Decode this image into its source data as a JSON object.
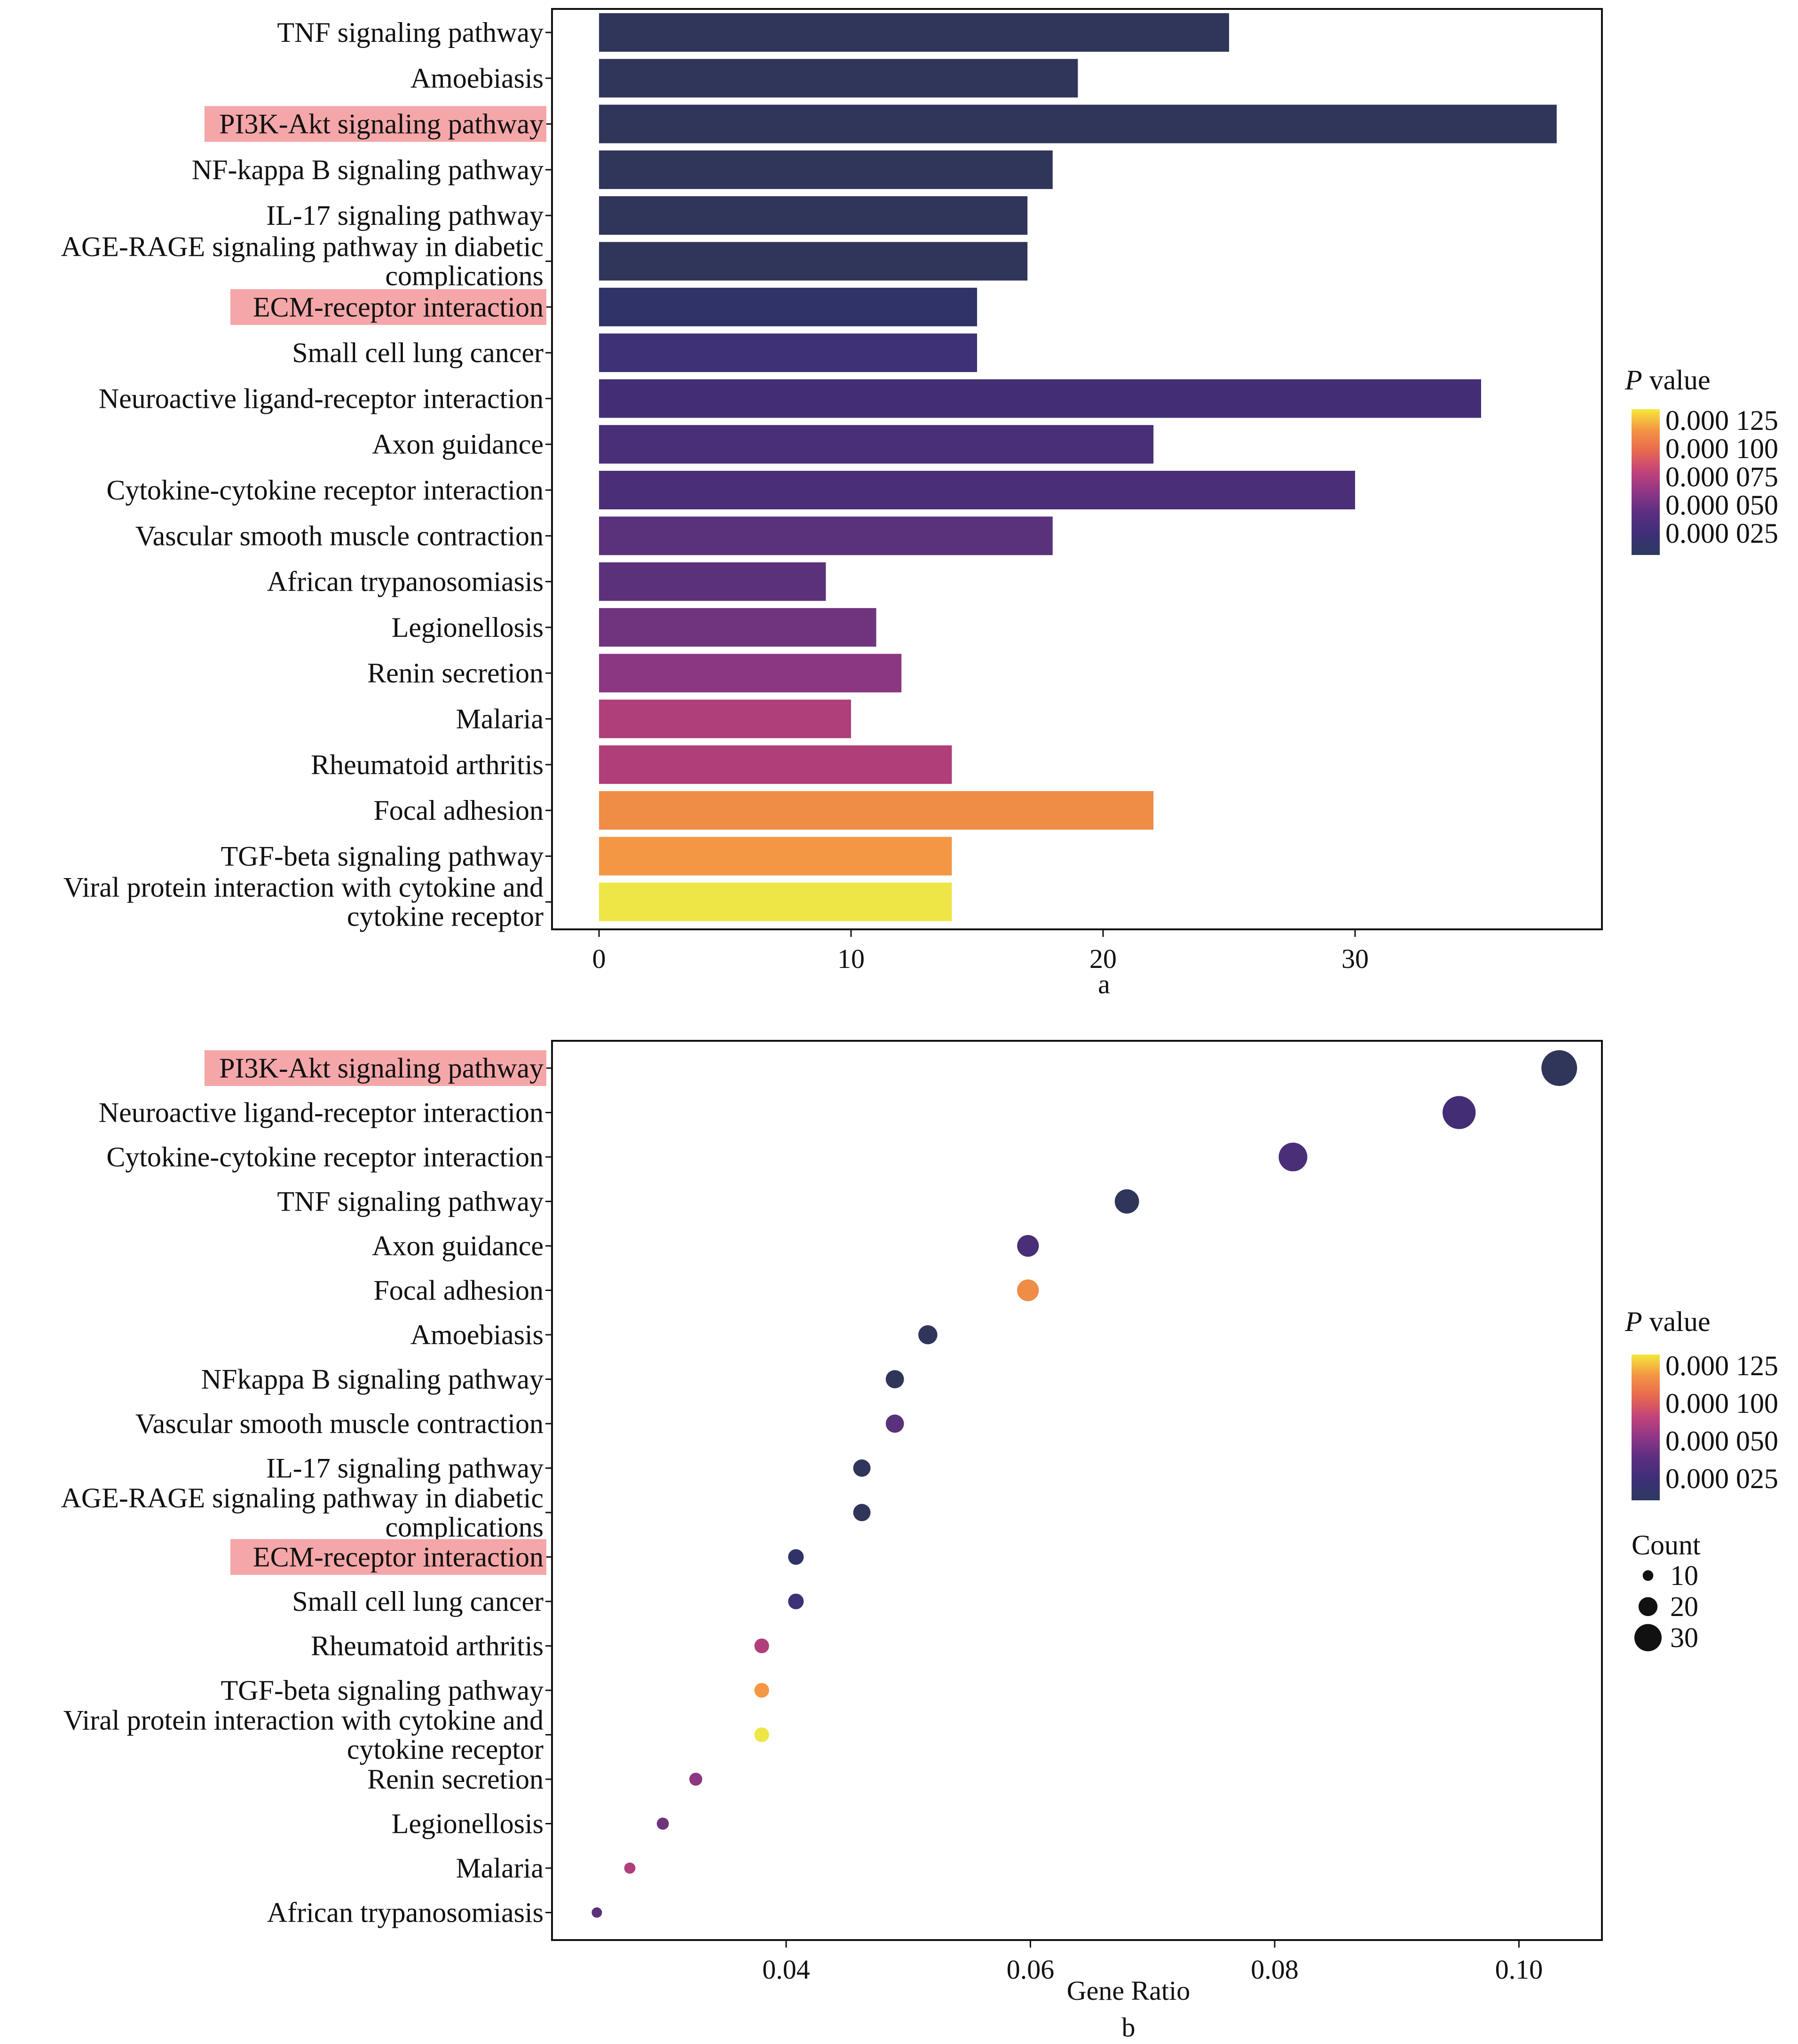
{
  "colorbar": {
    "title_italic": "P",
    "title_rest": " value",
    "stops": [
      "#2c3a5e",
      "#3e2f78",
      "#5a2f80",
      "#8e3686",
      "#c2437a",
      "#e8694f",
      "#f39544",
      "#f5e83a"
    ],
    "ticks_a": [
      "0.000 125",
      "0.000 100",
      "0.000 075",
      "0.000 050",
      "0.000 025"
    ],
    "ticks_b": [
      "0.000 125",
      "0.000 100",
      "0.000 050",
      "0.000 025"
    ]
  },
  "size_legend": {
    "title": "Count",
    "entries": [
      {
        "label": "10",
        "value": 10
      },
      {
        "label": "20",
        "value": 20
      },
      {
        "label": "30",
        "value": 30
      }
    ]
  },
  "highlight_color": "#f4a6a8",
  "chart_data": [
    {
      "type": "bar",
      "orientation": "horizontal",
      "panel_label": "a",
      "xlabel": "a",
      "ylabel": "",
      "xlim": [
        0,
        38
      ],
      "x_ticks": [
        0,
        10,
        20,
        30
      ],
      "x_tick_labels": [
        "0",
        "10",
        "20",
        "30"
      ],
      "grid": false,
      "legend": "right",
      "color_encoding": "P value",
      "categories": [
        {
          "label": [
            "TNF signaling pathway"
          ],
          "count": 25,
          "color": "#30365a",
          "highlight": false
        },
        {
          "label": [
            "Amoebiasis"
          ],
          "count": 19,
          "color": "#30365a",
          "highlight": false
        },
        {
          "label": [
            "PI3K-Akt signaling pathway"
          ],
          "count": 38,
          "color": "#30365a",
          "highlight": true
        },
        {
          "label": [
            "NF-kappa B signaling pathway"
          ],
          "count": 18,
          "color": "#30355a",
          "highlight": false
        },
        {
          "label": [
            "IL-17 signaling pathway"
          ],
          "count": 17,
          "color": "#30355a",
          "highlight": false
        },
        {
          "label": [
            "AGE-RAGE signaling pathway in diabetic",
            "complications"
          ],
          "count": 17,
          "color": "#30355a",
          "highlight": false
        },
        {
          "label": [
            "ECM-receptor interaction"
          ],
          "count": 15,
          "color": "#303368",
          "highlight": true
        },
        {
          "label": [
            "Small cell lung cancer"
          ],
          "count": 15,
          "color": "#3e3176",
          "highlight": false
        },
        {
          "label": [
            "Neuroactive ligand-receptor interaction"
          ],
          "count": 35,
          "color": "#432e76",
          "highlight": false
        },
        {
          "label": [
            "Axon guidance"
          ],
          "count": 22,
          "color": "#482f77",
          "highlight": false
        },
        {
          "label": [
            "Cytokine-cytokine receptor interaction"
          ],
          "count": 30,
          "color": "#4a2f78",
          "highlight": false
        },
        {
          "label": [
            "Vascular smooth muscle contraction"
          ],
          "count": 18,
          "color": "#5a317b",
          "highlight": false
        },
        {
          "label": [
            "African trypanosomiasis"
          ],
          "count": 9,
          "color": "#5c317b",
          "highlight": false
        },
        {
          "label": [
            "Legionellosis"
          ],
          "count": 11,
          "color": "#6f347d",
          "highlight": false
        },
        {
          "label": [
            "Renin secretion"
          ],
          "count": 12,
          "color": "#8b3781",
          "highlight": false
        },
        {
          "label": [
            "Malaria"
          ],
          "count": 10,
          "color": "#ae3f7a",
          "highlight": false
        },
        {
          "label": [
            "Rheumatoid arthritis"
          ],
          "count": 14,
          "color": "#b03f79",
          "highlight": false
        },
        {
          "label": [
            "Focal adhesion"
          ],
          "count": 22,
          "color": "#ef8c46",
          "highlight": false
        },
        {
          "label": [
            "TGF-beta signaling pathway"
          ],
          "count": 14,
          "color": "#f39744",
          "highlight": false
        },
        {
          "label": [
            "Viral protein interaction with cytokine and",
            "cytokine receptor"
          ],
          "count": 14,
          "color": "#eee646",
          "highlight": false
        }
      ]
    },
    {
      "type": "scatter",
      "panel_label": "b",
      "xlabel": "Gene Ratio",
      "caption": "b",
      "ylabel": "",
      "xlim": [
        0.0225,
        0.1055
      ],
      "x_ticks": [
        0.04,
        0.06,
        0.08,
        0.1
      ],
      "x_tick_labels": [
        "0.04",
        "0.06",
        "0.08",
        "0.10"
      ],
      "grid": false,
      "legend": "right",
      "color_encoding": "P value",
      "size_encoding": "Count",
      "points": [
        {
          "label": [
            "PI3K-Akt signaling pathway"
          ],
          "gene_ratio": 0.1033,
          "count": 38,
          "color": "#30365a",
          "highlight": true
        },
        {
          "label": [
            "Neuroactive ligand-receptor interaction"
          ],
          "gene_ratio": 0.0951,
          "count": 35,
          "color": "#432e76",
          "highlight": false
        },
        {
          "label": [
            "Cytokine-cytokine receptor interaction"
          ],
          "gene_ratio": 0.0815,
          "count": 30,
          "color": "#4a2f78",
          "highlight": false
        },
        {
          "label": [
            "TNF signaling pathway"
          ],
          "gene_ratio": 0.0679,
          "count": 25,
          "color": "#30365a",
          "highlight": false
        },
        {
          "label": [
            "Axon guidance"
          ],
          "gene_ratio": 0.0598,
          "count": 22,
          "color": "#482f77",
          "highlight": false
        },
        {
          "label": [
            "Focal adhesion"
          ],
          "gene_ratio": 0.0598,
          "count": 22,
          "color": "#ef8c46",
          "highlight": false
        },
        {
          "label": [
            "Amoebiasis"
          ],
          "gene_ratio": 0.0516,
          "count": 19,
          "color": "#30365a",
          "highlight": false
        },
        {
          "label": [
            "NFkappa B signaling pathway"
          ],
          "gene_ratio": 0.0489,
          "count": 18,
          "color": "#30355a",
          "highlight": false
        },
        {
          "label": [
            "Vascular smooth muscle contraction"
          ],
          "gene_ratio": 0.0489,
          "count": 18,
          "color": "#5a317b",
          "highlight": false
        },
        {
          "label": [
            "IL-17 signaling pathway"
          ],
          "gene_ratio": 0.0462,
          "count": 17,
          "color": "#30355a",
          "highlight": false
        },
        {
          "label": [
            "AGE-RAGE signaling pathway in diabetic",
            "complications"
          ],
          "gene_ratio": 0.0462,
          "count": 17,
          "color": "#30355a",
          "highlight": false
        },
        {
          "label": [
            "ECM-receptor interaction"
          ],
          "gene_ratio": 0.0408,
          "count": 15,
          "color": "#303368",
          "highlight": true
        },
        {
          "label": [
            "Small cell lung cancer"
          ],
          "gene_ratio": 0.0408,
          "count": 15,
          "color": "#3e3176",
          "highlight": false
        },
        {
          "label": [
            "Rheumatoid arthritis"
          ],
          "gene_ratio": 0.038,
          "count": 14,
          "color": "#b03f79",
          "highlight": false
        },
        {
          "label": [
            "TGF-beta signaling pathway"
          ],
          "gene_ratio": 0.038,
          "count": 14,
          "color": "#f39744",
          "highlight": false
        },
        {
          "label": [
            "Viral protein interaction with cytokine and",
            "cytokine receptor"
          ],
          "gene_ratio": 0.038,
          "count": 14,
          "color": "#eee646",
          "highlight": false
        },
        {
          "label": [
            "Renin secretion"
          ],
          "gene_ratio": 0.0326,
          "count": 12,
          "color": "#8b3781",
          "highlight": false
        },
        {
          "label": [
            "Legionellosis"
          ],
          "gene_ratio": 0.0299,
          "count": 11,
          "color": "#6f347d",
          "highlight": false
        },
        {
          "label": [
            "Malaria"
          ],
          "gene_ratio": 0.0272,
          "count": 10,
          "color": "#ae3f7a",
          "highlight": false
        },
        {
          "label": [
            "African trypanosomiasis"
          ],
          "gene_ratio": 0.0245,
          "count": 9,
          "color": "#5c317b",
          "highlight": false
        }
      ]
    }
  ]
}
